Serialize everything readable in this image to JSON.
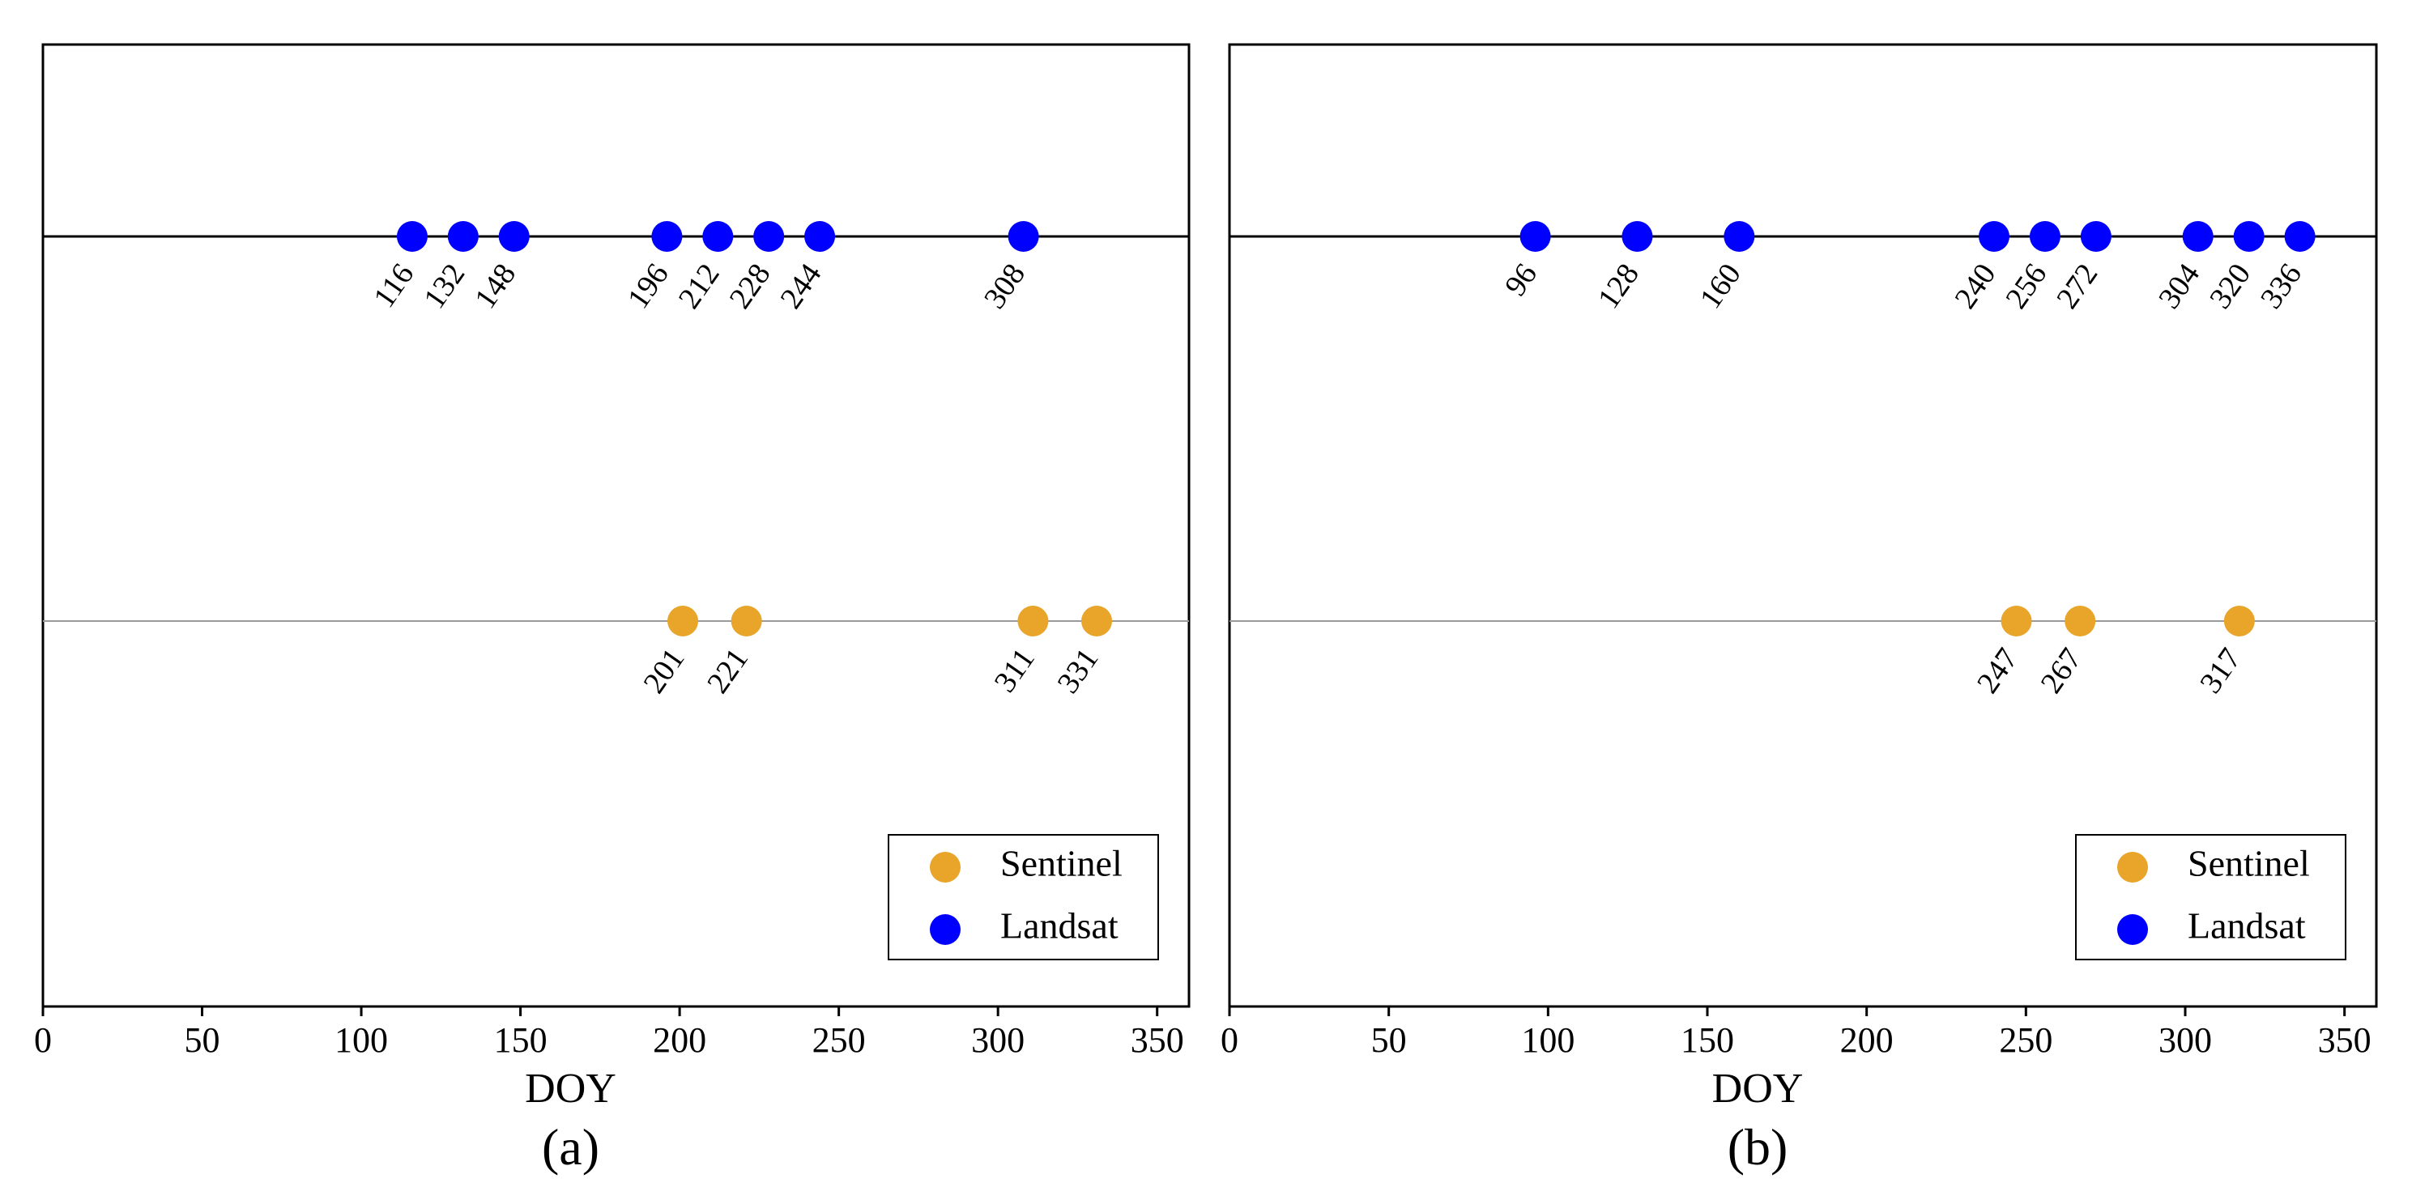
{
  "chart_data": [
    {
      "type": "scatter",
      "panel_label": "(a)",
      "xlabel": "DOY",
      "xlim": [
        0,
        360
      ],
      "xticks": [
        0,
        50,
        100,
        150,
        200,
        250,
        300,
        350
      ],
      "series": [
        {
          "name": "Landsat",
          "color": "#0000FF",
          "row": "upper",
          "values": [
            116,
            132,
            148,
            196,
            212,
            228,
            244,
            308
          ]
        },
        {
          "name": "Sentinel",
          "color": "#E8A52A",
          "row": "lower",
          "values": [
            201,
            221,
            311,
            331
          ]
        }
      ],
      "legend": {
        "position": "bottom-right",
        "entries": [
          {
            "label": "Sentinel",
            "color": "#E8A52A"
          },
          {
            "label": "Landsat",
            "color": "#0000FF"
          }
        ]
      }
    },
    {
      "type": "scatter",
      "panel_label": "(b)",
      "xlabel": "DOY",
      "xlim": [
        0,
        360
      ],
      "xticks": [
        0,
        50,
        100,
        150,
        200,
        250,
        300,
        350
      ],
      "series": [
        {
          "name": "Landsat",
          "color": "#0000FF",
          "row": "upper",
          "values": [
            96,
            128,
            160,
            240,
            256,
            272,
            304,
            320,
            336
          ]
        },
        {
          "name": "Sentinel",
          "color": "#E8A52A",
          "row": "lower",
          "values": [
            247,
            267,
            317
          ]
        }
      ],
      "legend": {
        "position": "bottom-right",
        "entries": [
          {
            "label": "Sentinel",
            "color": "#E8A52A"
          },
          {
            "label": "Landsat",
            "color": "#0000FF"
          }
        ]
      }
    }
  ]
}
